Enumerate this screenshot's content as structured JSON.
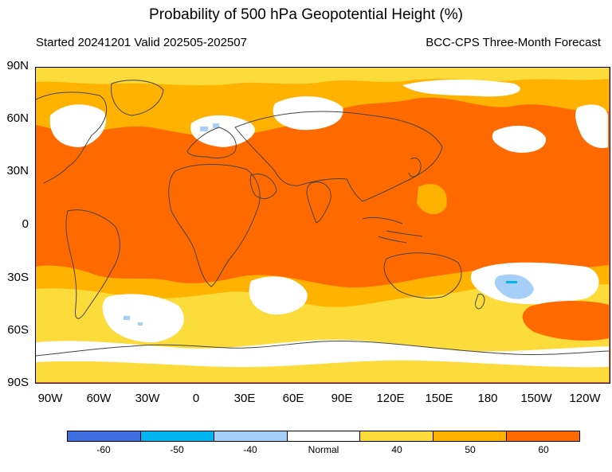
{
  "title": "Probability of 500 hPa Geopotential Height (%)",
  "subtitle_left": "Started 20241201  Valid 202505-202507",
  "subtitle_right": "BCC-CPS Three-Month Forecast",
  "lat_labels": [
    "90N",
    "60N",
    "30N",
    "0",
    "30S",
    "60S",
    "90S"
  ],
  "lon_labels": [
    "90W",
    "60W",
    "30W",
    "0",
    "30E",
    "60E",
    "90E",
    "120E",
    "150E",
    "180",
    "150W",
    "120W"
  ],
  "legend": {
    "labels": [
      "-60",
      "-50",
      "-40",
      "Normal",
      "40",
      "50",
      "60"
    ],
    "colors": [
      "#3f6fe0",
      "#00b4f0",
      "#a6d0f8",
      "#ffffff",
      "#fbdc3a",
      "#ffb300",
      "#ff6a00"
    ]
  },
  "map_palette": {
    "above60": "#ff6a00",
    "above50": "#ffb300",
    "above40": "#fbdc3a",
    "normal": "#ffffff",
    "below40": "#a6d0f8",
    "below50": "#00b4f0",
    "coastline": "#444444"
  }
}
